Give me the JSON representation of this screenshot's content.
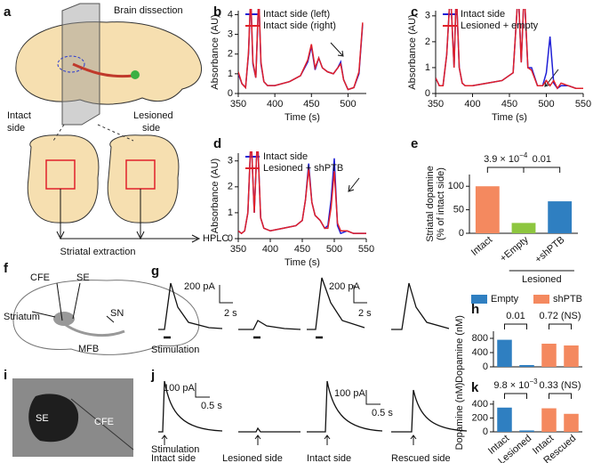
{
  "panel_labels": [
    "a",
    "b",
    "c",
    "d",
    "e",
    "f",
    "g",
    "h",
    "i",
    "j",
    "k"
  ],
  "panel_a": {
    "dissection": "Brain dissection",
    "intact": "Intact",
    "intact2": "side",
    "lesioned": "Lesioned",
    "lesioned2": "side",
    "hplc": "HPLC",
    "extraction": "Striatal extraction"
  },
  "panel_f": {
    "cfe": "CFE",
    "se": "SE",
    "striatum": "Striatum",
    "sn": "SN",
    "mfb": "MFB"
  },
  "panel_g": {
    "scale_y": [
      "200 pA",
      "200 pA"
    ],
    "scale_x": [
      "2 s",
      "2 s"
    ],
    "stimulation": "Stimulation"
  },
  "panel_i": {
    "se": "SE",
    "cfe": "CFE"
  },
  "panel_j": {
    "scale_y": [
      "100 pA",
      "100 pA"
    ],
    "scale_x": [
      "0.5 s",
      "0.5 s"
    ],
    "stimulation": "Stimulation",
    "conditions": [
      "Intact side",
      "Lesioned side",
      "Intact side",
      "Rescued side"
    ]
  },
  "chart_data": [
    {
      "type": "line",
      "xlabel": "Time (s)",
      "ylabel": "Absorbance (AU)",
      "xlim": [
        350,
        525
      ],
      "ylim": [
        0,
        4.2
      ],
      "xticks": [
        350,
        400,
        450,
        500
      ],
      "yticks": [
        0,
        1,
        2,
        3,
        4
      ],
      "x": [
        350,
        355,
        360,
        364,
        367,
        370,
        374,
        378,
        381,
        385,
        390,
        400,
        420,
        435,
        445,
        450,
        455,
        460,
        465,
        472,
        480,
        486,
        490,
        494,
        500,
        508,
        515,
        520
      ],
      "series": [
        {
          "name": "Intact side (left)",
          "color": "#1f1fd6",
          "values": [
            1.0,
            0.5,
            0.3,
            2.0,
            5.0,
            1.5,
            0.8,
            5.0,
            1.5,
            0.6,
            0.4,
            0.4,
            0.6,
            0.9,
            1.6,
            2.4,
            1.2,
            1.8,
            1.3,
            1.1,
            1.0,
            1.3,
            1.6,
            0.7,
            0.2,
            0.3,
            1.0,
            3.5
          ]
        },
        {
          "name": "Intact side (right)",
          "color": "#e0202a",
          "values": [
            1.1,
            0.5,
            0.3,
            2.1,
            5.0,
            1.6,
            0.8,
            5.0,
            1.6,
            0.6,
            0.4,
            0.4,
            0.6,
            0.9,
            1.7,
            2.5,
            1.3,
            1.8,
            1.3,
            1.1,
            1.0,
            1.3,
            1.5,
            0.7,
            0.2,
            0.3,
            1.1,
            3.6
          ]
        }
      ]
    },
    {
      "type": "line",
      "xlabel": "Time (s)",
      "ylabel": "Absorbance (AU)",
      "xlim": [
        350,
        550
      ],
      "ylim": [
        0,
        3.2
      ],
      "xticks": [
        350,
        400,
        450,
        500,
        550
      ],
      "yticks": [
        0,
        1,
        2,
        3
      ],
      "x": [
        350,
        355,
        360,
        365,
        370,
        375,
        378,
        382,
        386,
        390,
        400,
        420,
        440,
        455,
        462,
        466,
        470,
        475,
        480,
        488,
        495,
        500,
        505,
        510,
        515,
        520,
        530,
        540,
        550
      ],
      "series": [
        {
          "name": "Intact side",
          "color": "#1f1fd6",
          "values": [
            0.6,
            0.3,
            0.3,
            1.5,
            4,
            1.0,
            4,
            1.0,
            0.4,
            0.3,
            0.3,
            0.4,
            0.5,
            0.8,
            4,
            1.2,
            4,
            1.0,
            1.0,
            0.3,
            0.3,
            0.8,
            2.2,
            0.4,
            0.2,
            0.3,
            0.3,
            0.2,
            0.2
          ]
        },
        {
          "name": "Lesioned + empty",
          "color": "#e0202a",
          "values": [
            0.6,
            0.3,
            0.3,
            1.5,
            4,
            1.0,
            4,
            1.0,
            0.4,
            0.3,
            0.3,
            0.4,
            0.5,
            0.8,
            4,
            1.2,
            4,
            1.0,
            0.9,
            0.3,
            0.3,
            0.5,
            0.3,
            0.5,
            0.2,
            0.4,
            0.3,
            0.2,
            0.2
          ]
        }
      ]
    },
    {
      "type": "line",
      "xlabel": "Time (s)",
      "ylabel": "Absorbance (AU)",
      "xlim": [
        350,
        550
      ],
      "ylim": [
        0,
        3.3
      ],
      "xticks": [
        350,
        400,
        450,
        500,
        550
      ],
      "yticks": [
        0,
        1,
        2,
        3
      ],
      "x": [
        350,
        355,
        360,
        365,
        370,
        375,
        380,
        385,
        390,
        400,
        420,
        440,
        450,
        455,
        460,
        465,
        470,
        478,
        485,
        490,
        495,
        500,
        505,
        510,
        520,
        530,
        540,
        550
      ],
      "series": [
        {
          "name": "Intact side",
          "color": "#1f1fd6",
          "values": [
            0.3,
            0.2,
            0.3,
            1.0,
            4,
            1.0,
            4,
            0.8,
            0.4,
            0.3,
            0.4,
            0.5,
            0.7,
            1.5,
            2.9,
            1.4,
            0.9,
            0.7,
            0.4,
            0.5,
            1.5,
            3.1,
            0.5,
            0.2,
            0.3,
            0.2,
            0.2,
            0.2
          ]
        },
        {
          "name": "Lesioned + shPTB",
          "color": "#e0202a",
          "values": [
            0.3,
            0.2,
            0.3,
            1.0,
            4,
            1.0,
            4,
            0.8,
            0.4,
            0.3,
            0.4,
            0.5,
            0.7,
            1.5,
            2.7,
            1.4,
            0.9,
            0.7,
            0.4,
            0.4,
            1.2,
            2.6,
            0.6,
            0.3,
            0.3,
            0.2,
            0.2,
            0.2
          ]
        }
      ]
    },
    {
      "type": "bar",
      "ylabel": [
        "Striatal dopamine",
        "(% of intact side)"
      ],
      "ylim": [
        0,
        125
      ],
      "yticks": [
        0,
        50,
        100
      ],
      "categories": [
        "Intact",
        "+Empty",
        "+shPTB"
      ],
      "colors": [
        "#f4895f",
        "#8dc63f",
        "#2f7fc1"
      ],
      "values": [
        100,
        22,
        68
      ],
      "pvalues": [
        {
          "base": "3.9 × 10",
          "exp": "−4"
        },
        {
          "base": "0.01"
        }
      ],
      "group_label": "Lesioned"
    },
    {
      "type": "bar",
      "ylabel": [
        "Dopamine (nM)"
      ],
      "ylim": [
        0,
        1000
      ],
      "yticks": [
        0,
        400,
        800
      ],
      "legend": "top",
      "series": [
        {
          "name": "Empty",
          "color": "#2f7fc1",
          "values": [
            760,
            50,
            null,
            null
          ]
        },
        {
          "name": "shPTB",
          "color": "#f4895f",
          "values": [
            null,
            null,
            650,
            600
          ]
        }
      ],
      "pvalues": [
        {
          "base": "0.01"
        },
        {
          "base": "0.72 (NS)"
        }
      ]
    },
    {
      "type": "bar",
      "ylabel": [
        "Dopamine (nM)"
      ],
      "ylim": [
        0,
        450
      ],
      "yticks": [
        0,
        200,
        400
      ],
      "categories": [
        "Intact",
        "Lesioned",
        "Intact",
        "Rescued"
      ],
      "series": [
        {
          "color": "#2f7fc1",
          "values": [
            350,
            20,
            null,
            null
          ]
        },
        {
          "color": "#f4895f",
          "values": [
            null,
            null,
            340,
            260
          ]
        }
      ],
      "pvalues": [
        {
          "base": "9.8 × 10",
          "exp": "−3"
        },
        {
          "base": "0.33 (NS)"
        }
      ]
    }
  ]
}
